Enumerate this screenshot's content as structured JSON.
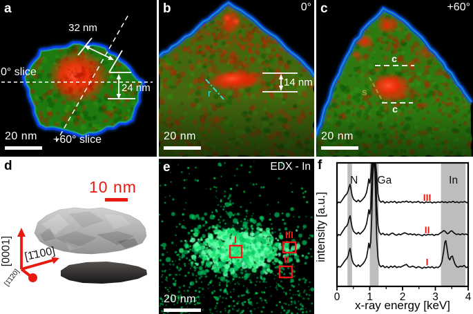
{
  "figure": {
    "panel_a": {
      "letter": "a",
      "dim_width": "32 nm",
      "dim_height": "24 nm",
      "slice_0": "0° slice",
      "slice_60": "+60° slice",
      "scale_bar": "20 nm"
    },
    "panel_b": {
      "letter": "b",
      "tilt": "0°",
      "thickness": "14 nm",
      "radius_label": "r",
      "scale_bar": "20 nm"
    },
    "panel_c": {
      "letter": "c",
      "tilt": "+60°",
      "c_top": "c",
      "c_bottom": "c",
      "s_label": "s",
      "scale_bar": "20 nm"
    },
    "panel_d": {
      "letter": "d",
      "scale_bar": "10 nm",
      "axis_c": "[0001]",
      "axis_m": "[1̄100]",
      "axis_a": "[1̄1̄20]"
    },
    "panel_e": {
      "letter": "e",
      "title": "EDX - In",
      "region_1": "I",
      "region_2": "II",
      "region_3": "III",
      "scale_bar": "20 nm"
    },
    "panel_f": {
      "letter": "f"
    },
    "colors": {
      "particle_green": "#1e7a10",
      "core_red": "#ff2a08",
      "rim_blue": "#0d3df0",
      "edx_green": "#00d166",
      "annotation_white": "#ffffff",
      "marker_red": "#f51515",
      "scalebar_red": "#e8190f",
      "cyan_line": "#38d8d8",
      "olive_line": "#a89f35"
    }
  },
  "chart_data": {
    "type": "line",
    "xlabel": "x-ray energy [keV]",
    "ylabel": "intensity [a.u.]",
    "xlim": [
      0,
      4
    ],
    "ylim": [
      0,
      10
    ],
    "xticks": [
      0,
      1,
      2,
      3,
      4
    ],
    "minor_ticks": [
      0.5,
      1.5,
      2.5,
      3.5
    ],
    "grid": false,
    "band_color": "#bdbdbd",
    "bands": [
      {
        "element": "N",
        "x0": 0.32,
        "x1": 0.46,
        "label_x": 0.52
      },
      {
        "element": "Ga",
        "x0": 1.0,
        "x1": 1.27,
        "label_x": 1.45
      },
      {
        "element": "In",
        "x0": 3.17,
        "x1": 3.92,
        "label_x": 3.55
      }
    ],
    "series_label_x": 2.75,
    "series_label_color": "#e8190f",
    "series": [
      {
        "name": "I",
        "baseline": 1.3,
        "points": [
          [
            0,
            0.18
          ],
          [
            0.05,
            0.32
          ],
          [
            0.1,
            0.26
          ],
          [
            0.15,
            0.42
          ],
          [
            0.2,
            0.62
          ],
          [
            0.25,
            0.82
          ],
          [
            0.3,
            0.96
          ],
          [
            0.34,
            1.2
          ],
          [
            0.37,
            1.55
          ],
          [
            0.4,
            1.78
          ],
          [
            0.43,
            1.3
          ],
          [
            0.46,
            0.85
          ],
          [
            0.5,
            0.55
          ],
          [
            0.55,
            0.42
          ],
          [
            0.6,
            0.3
          ],
          [
            0.65,
            0.45
          ],
          [
            0.7,
            0.3
          ],
          [
            0.75,
            0.42
          ],
          [
            0.8,
            0.55
          ],
          [
            0.85,
            0.75
          ],
          [
            0.9,
            1.05
          ],
          [
            0.94,
            1.65
          ],
          [
            0.97,
            2.2
          ],
          [
            1.0,
            1.8
          ],
          [
            1.03,
            2.3
          ],
          [
            1.06,
            4.2
          ],
          [
            1.09,
            7.5
          ],
          [
            1.12,
            9.7
          ],
          [
            1.15,
            9.3
          ],
          [
            1.18,
            6.0
          ],
          [
            1.21,
            2.6
          ],
          [
            1.25,
            1.0
          ],
          [
            1.29,
            0.45
          ],
          [
            1.34,
            0.28
          ],
          [
            1.4,
            0.38
          ],
          [
            1.46,
            0.22
          ],
          [
            1.52,
            0.32
          ],
          [
            1.58,
            0.2
          ],
          [
            1.64,
            0.34
          ],
          [
            1.7,
            0.24
          ],
          [
            1.76,
            0.36
          ],
          [
            1.82,
            0.22
          ],
          [
            1.88,
            0.3
          ],
          [
            1.94,
            0.26
          ],
          [
            2.0,
            0.34
          ],
          [
            2.06,
            0.42
          ],
          [
            2.12,
            0.48
          ],
          [
            2.18,
            0.3
          ],
          [
            2.24,
            0.26
          ],
          [
            2.3,
            0.34
          ],
          [
            2.36,
            0.28
          ],
          [
            2.42,
            0.2
          ],
          [
            2.48,
            0.3
          ],
          [
            2.54,
            0.24
          ],
          [
            2.6,
            0.16
          ],
          [
            2.66,
            0.26
          ],
          [
            2.72,
            0.2
          ],
          [
            2.78,
            0.28
          ],
          [
            2.84,
            0.22
          ],
          [
            2.9,
            0.3
          ],
          [
            2.96,
            0.18
          ],
          [
            3.02,
            0.26
          ],
          [
            3.08,
            0.22
          ],
          [
            3.14,
            0.34
          ],
          [
            3.2,
            0.7
          ],
          [
            3.25,
            1.5
          ],
          [
            3.29,
            2.3
          ],
          [
            3.32,
            2.4
          ],
          [
            3.36,
            1.7
          ],
          [
            3.4,
            1.0
          ],
          [
            3.44,
            0.85
          ],
          [
            3.48,
            1.1
          ],
          [
            3.52,
            1.15
          ],
          [
            3.56,
            0.8
          ],
          [
            3.6,
            0.5
          ],
          [
            3.65,
            0.3
          ],
          [
            3.7,
            0.26
          ],
          [
            3.76,
            0.34
          ],
          [
            3.82,
            0.3
          ],
          [
            3.88,
            0.4
          ],
          [
            3.94,
            0.22
          ],
          [
            4.0,
            0.3
          ]
        ]
      },
      {
        "name": "II",
        "baseline": 3.9,
        "points": [
          [
            0,
            0.15
          ],
          [
            0.05,
            0.3
          ],
          [
            0.1,
            0.24
          ],
          [
            0.15,
            0.45
          ],
          [
            0.2,
            0.66
          ],
          [
            0.25,
            0.88
          ],
          [
            0.3,
            1.0
          ],
          [
            0.34,
            1.25
          ],
          [
            0.37,
            1.6
          ],
          [
            0.4,
            1.82
          ],
          [
            0.43,
            1.35
          ],
          [
            0.46,
            0.9
          ],
          [
            0.5,
            0.58
          ],
          [
            0.55,
            0.44
          ],
          [
            0.6,
            0.34
          ],
          [
            0.65,
            0.48
          ],
          [
            0.7,
            0.34
          ],
          [
            0.75,
            0.46
          ],
          [
            0.8,
            0.6
          ],
          [
            0.85,
            0.8
          ],
          [
            0.9,
            1.15
          ],
          [
            0.94,
            1.75
          ],
          [
            0.97,
            2.3
          ],
          [
            1.0,
            1.95
          ],
          [
            1.03,
            2.45
          ],
          [
            1.06,
            4.6
          ],
          [
            1.09,
            8.0
          ],
          [
            1.12,
            10.0
          ],
          [
            1.15,
            9.4
          ],
          [
            1.18,
            6.2
          ],
          [
            1.21,
            2.7
          ],
          [
            1.25,
            1.05
          ],
          [
            1.29,
            0.5
          ],
          [
            1.34,
            0.3
          ],
          [
            1.4,
            0.4
          ],
          [
            1.46,
            0.26
          ],
          [
            1.52,
            0.34
          ],
          [
            1.58,
            0.24
          ],
          [
            1.64,
            0.36
          ],
          [
            1.7,
            0.42
          ],
          [
            1.76,
            0.3
          ],
          [
            1.82,
            0.24
          ],
          [
            1.88,
            0.34
          ],
          [
            1.94,
            0.28
          ],
          [
            2.0,
            0.36
          ],
          [
            2.06,
            0.44
          ],
          [
            2.12,
            0.38
          ],
          [
            2.18,
            0.3
          ],
          [
            2.24,
            0.36
          ],
          [
            2.3,
            0.28
          ],
          [
            2.36,
            0.34
          ],
          [
            2.42,
            0.24
          ],
          [
            2.48,
            0.32
          ],
          [
            2.54,
            0.26
          ],
          [
            2.6,
            0.2
          ],
          [
            2.66,
            0.3
          ],
          [
            2.72,
            0.24
          ],
          [
            2.78,
            0.32
          ],
          [
            2.84,
            0.26
          ],
          [
            2.9,
            0.32
          ],
          [
            2.96,
            0.22
          ],
          [
            3.02,
            0.3
          ],
          [
            3.08,
            0.28
          ],
          [
            3.14,
            0.4
          ],
          [
            3.2,
            0.5
          ],
          [
            3.26,
            0.62
          ],
          [
            3.3,
            0.55
          ],
          [
            3.34,
            0.42
          ],
          [
            3.38,
            0.36
          ],
          [
            3.42,
            0.44
          ],
          [
            3.46,
            0.56
          ],
          [
            3.5,
            0.6
          ],
          [
            3.54,
            0.5
          ],
          [
            3.58,
            0.4
          ],
          [
            3.64,
            0.3
          ],
          [
            3.7,
            0.34
          ],
          [
            3.76,
            0.28
          ],
          [
            3.82,
            0.36
          ],
          [
            3.88,
            0.3
          ],
          [
            3.94,
            0.34
          ],
          [
            4.0,
            0.24
          ]
        ]
      },
      {
        "name": "III",
        "baseline": 6.55,
        "points": [
          [
            0,
            0.14
          ],
          [
            0.05,
            0.28
          ],
          [
            0.1,
            0.22
          ],
          [
            0.15,
            0.4
          ],
          [
            0.2,
            0.6
          ],
          [
            0.25,
            0.8
          ],
          [
            0.3,
            0.94
          ],
          [
            0.34,
            1.18
          ],
          [
            0.37,
            1.5
          ],
          [
            0.4,
            1.72
          ],
          [
            0.43,
            1.28
          ],
          [
            0.46,
            0.82
          ],
          [
            0.5,
            0.52
          ],
          [
            0.55,
            0.4
          ],
          [
            0.6,
            0.3
          ],
          [
            0.65,
            0.44
          ],
          [
            0.7,
            0.3
          ],
          [
            0.75,
            0.4
          ],
          [
            0.8,
            0.55
          ],
          [
            0.85,
            0.72
          ],
          [
            0.9,
            1.05
          ],
          [
            0.94,
            1.6
          ],
          [
            0.97,
            2.15
          ],
          [
            1.0,
            1.8
          ],
          [
            1.03,
            2.25
          ],
          [
            1.06,
            4.3
          ],
          [
            1.09,
            7.8
          ],
          [
            1.12,
            9.8
          ],
          [
            1.15,
            9.2
          ],
          [
            1.18,
            5.9
          ],
          [
            1.21,
            2.5
          ],
          [
            1.25,
            0.95
          ],
          [
            1.29,
            0.42
          ],
          [
            1.34,
            0.26
          ],
          [
            1.4,
            0.36
          ],
          [
            1.46,
            0.2
          ],
          [
            1.52,
            0.3
          ],
          [
            1.58,
            0.22
          ],
          [
            1.64,
            0.32
          ],
          [
            1.7,
            0.26
          ],
          [
            1.76,
            0.34
          ],
          [
            1.82,
            0.2
          ],
          [
            1.88,
            0.3
          ],
          [
            1.94,
            0.24
          ],
          [
            2.0,
            0.32
          ],
          [
            2.06,
            0.28
          ],
          [
            2.12,
            0.36
          ],
          [
            2.18,
            0.26
          ],
          [
            2.24,
            0.32
          ],
          [
            2.3,
            0.22
          ],
          [
            2.36,
            0.3
          ],
          [
            2.42,
            0.26
          ],
          [
            2.48,
            0.34
          ],
          [
            2.54,
            0.22
          ],
          [
            2.6,
            0.28
          ],
          [
            2.66,
            0.2
          ],
          [
            2.72,
            0.3
          ],
          [
            2.78,
            0.24
          ],
          [
            2.84,
            0.3
          ],
          [
            2.9,
            0.2
          ],
          [
            2.96,
            0.28
          ],
          [
            3.02,
            0.22
          ],
          [
            3.08,
            0.3
          ],
          [
            3.14,
            0.24
          ],
          [
            3.2,
            0.32
          ],
          [
            3.26,
            0.24
          ],
          [
            3.3,
            0.3
          ],
          [
            3.36,
            0.22
          ],
          [
            3.42,
            0.3
          ],
          [
            3.48,
            0.26
          ],
          [
            3.54,
            0.34
          ],
          [
            3.6,
            0.24
          ],
          [
            3.66,
            0.3
          ],
          [
            3.72,
            0.22
          ],
          [
            3.78,
            0.3
          ],
          [
            3.84,
            0.26
          ],
          [
            3.9,
            0.32
          ],
          [
            3.96,
            0.22
          ],
          [
            4.0,
            0.26
          ]
        ]
      }
    ]
  }
}
